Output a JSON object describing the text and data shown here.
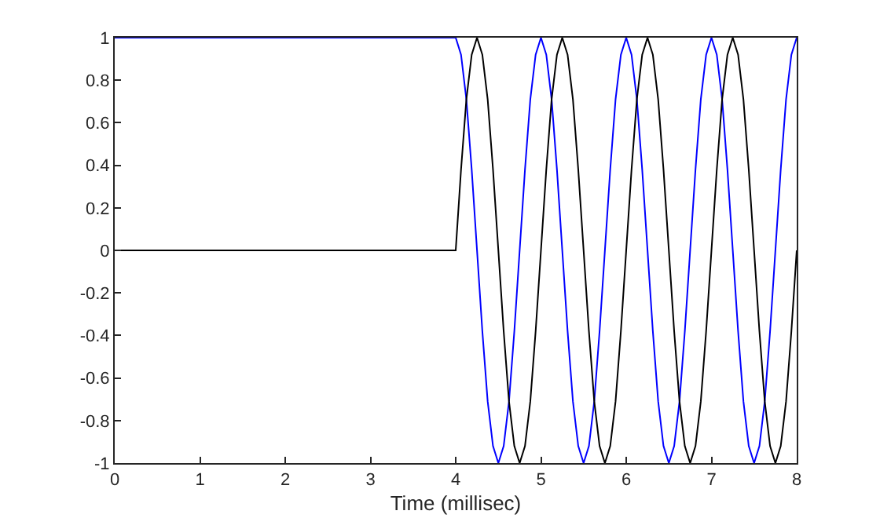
{
  "chart_data": {
    "type": "line",
    "xlabel": "Time (millisec)",
    "xlim": [
      0,
      8
    ],
    "xticks": [
      0,
      1,
      2,
      3,
      4,
      5,
      6,
      7,
      8
    ],
    "ylim": [
      -1,
      1
    ],
    "yticks": [
      -1,
      -0.8,
      -0.6,
      -0.4,
      -0.2,
      0,
      0.2,
      0.4,
      0.6,
      0.8,
      1
    ],
    "marker": "none",
    "line_style": "solid",
    "x": [
      0,
      4,
      4.0625,
      4.125,
      4.1875,
      4.25,
      4.3125,
      4.375,
      4.4375,
      4.5,
      4.5625,
      4.625,
      4.6875,
      4.75,
      4.8125,
      4.875,
      4.9375,
      5,
      5.0625,
      5.125,
      5.1875,
      5.25,
      5.3125,
      5.375,
      5.4375,
      5.5,
      5.5625,
      5.625,
      5.6875,
      5.75,
      5.8125,
      5.875,
      5.9375,
      6,
      6.0625,
      6.125,
      6.1875,
      6.25,
      6.3125,
      6.375,
      6.4375,
      6.5,
      6.5625,
      6.625,
      6.6875,
      6.75,
      6.8125,
      6.875,
      6.9375,
      7,
      7.0625,
      7.125,
      7.1875,
      7.25,
      7.3125,
      7.375,
      7.4375,
      7.5,
      7.5625,
      7.625,
      7.6875,
      7.75,
      7.8125,
      7.875,
      7.9375,
      8
    ],
    "series": [
      {
        "color": "#0000ff",
        "values": [
          1,
          1,
          0.92,
          0.71,
          0.38,
          0,
          -0.38,
          -0.71,
          -0.92,
          -1,
          -0.92,
          -0.71,
          -0.38,
          0,
          0.38,
          0.71,
          0.92,
          1,
          0.92,
          0.71,
          0.38,
          0,
          -0.38,
          -0.71,
          -0.92,
          -1,
          -0.92,
          -0.71,
          -0.38,
          0,
          0.38,
          0.71,
          0.92,
          1,
          0.92,
          0.71,
          0.38,
          0,
          -0.38,
          -0.71,
          -0.92,
          -1,
          -0.92,
          -0.71,
          -0.38,
          0,
          0.38,
          0.71,
          0.92,
          1,
          0.92,
          0.71,
          0.38,
          0,
          -0.38,
          -0.71,
          -0.92,
          -1,
          -0.92,
          -0.71,
          -0.38,
          0,
          0.38,
          0.71,
          0.92,
          1
        ]
      },
      {
        "color": "#000000",
        "values": [
          0,
          0,
          0.38,
          0.71,
          0.92,
          1,
          0.92,
          0.71,
          0.38,
          0,
          -0.38,
          -0.71,
          -0.92,
          -1,
          -0.92,
          -0.71,
          -0.38,
          0,
          0.38,
          0.71,
          0.92,
          1,
          0.92,
          0.71,
          0.38,
          0,
          -0.38,
          -0.71,
          -0.92,
          -1,
          -0.92,
          -0.71,
          -0.38,
          0,
          0.38,
          0.71,
          0.92,
          1,
          0.92,
          0.71,
          0.38,
          0,
          -0.38,
          -0.71,
          -0.92,
          -1,
          -0.92,
          -0.71,
          -0.38,
          0,
          0.38,
          0.71,
          0.92,
          1,
          0.92,
          0.71,
          0.38,
          0,
          -0.38,
          -0.71,
          -0.92,
          -1,
          -0.92,
          -0.71,
          -0.38,
          0
        ]
      }
    ]
  }
}
